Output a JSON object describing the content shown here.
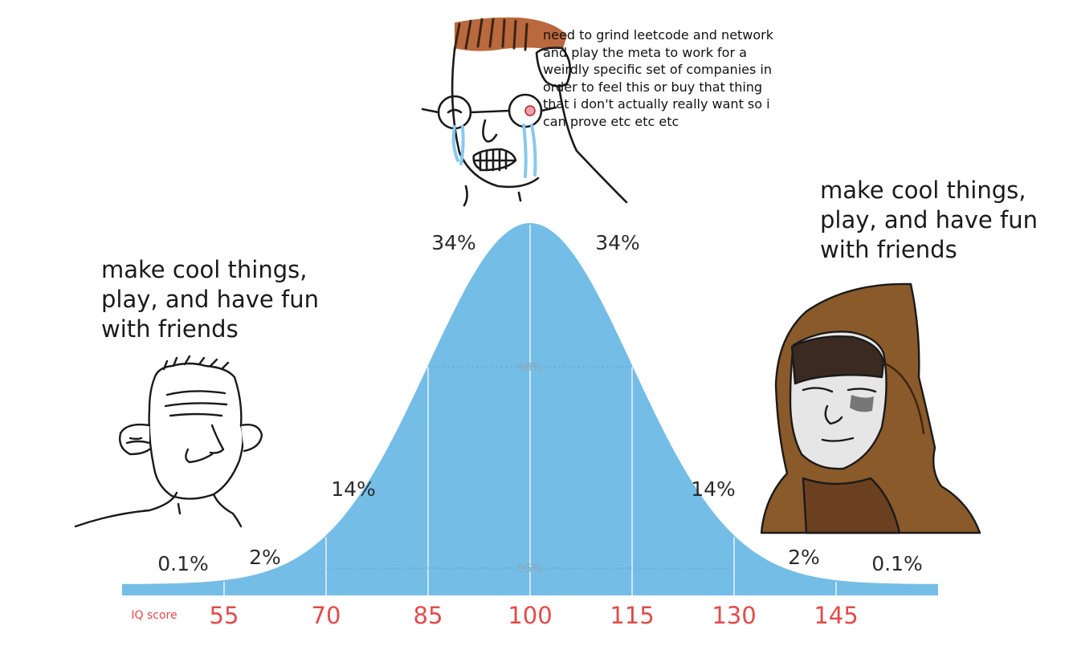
{
  "captions": {
    "top": "need to grind leetcode and network and play the meta to work for a weirdly specific set of companies in order to feel this or buy that thing that i don't actually really want so i can prove etc etc etc",
    "left": "make cool things,\nplay, and have fun\nwith friends",
    "right": "make cool things,\nplay, and have fun\nwith friends"
  },
  "colors": {
    "curve": "#74bde6",
    "bar": "#74bde6",
    "ticks": "#e34a4a",
    "text": "#2b2b2b"
  },
  "characters": [
    "wojak-crying-glasses",
    "wojak-simple-smile",
    "wojak-hooded"
  ],
  "chart_data": {
    "type": "area",
    "distribution": "normal",
    "mean": 100,
    "sd": 15,
    "x_label": "IQ score",
    "ticks": [
      55,
      70,
      85,
      100,
      115,
      130,
      145
    ],
    "xlim": [
      40,
      160
    ],
    "bands": [
      {
        "from": 40,
        "to": 55,
        "label": "0.1%"
      },
      {
        "from": 55,
        "to": 70,
        "label": "2%"
      },
      {
        "from": 70,
        "to": 85,
        "label": "14%"
      },
      {
        "from": 85,
        "to": 100,
        "label": "34%"
      },
      {
        "from": 100,
        "to": 115,
        "label": "34%"
      },
      {
        "from": 115,
        "to": 130,
        "label": "14%"
      },
      {
        "from": 130,
        "to": 145,
        "label": "2%"
      },
      {
        "from": 145,
        "to": 160,
        "label": "0.1%"
      }
    ],
    "spans": [
      {
        "from": 85,
        "to": 115,
        "label": "68%"
      },
      {
        "from": 70,
        "to": 130,
        "label": "95%"
      }
    ]
  }
}
